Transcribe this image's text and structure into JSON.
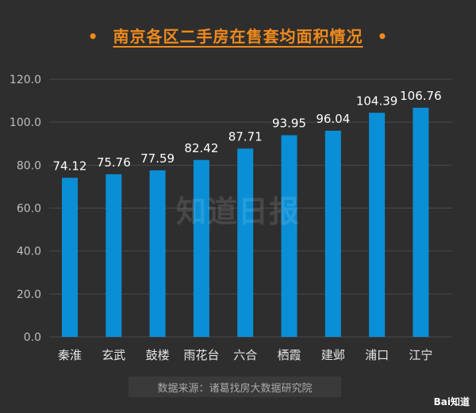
{
  "chart_data": {
    "type": "bar",
    "title": "南京各区二手房在售套均面积情况",
    "categories": [
      "秦淮",
      "玄武",
      "鼓楼",
      "雨花台",
      "六合",
      "栖霞",
      "建邺",
      "浦口",
      "江宁"
    ],
    "values": [
      74.12,
      75.76,
      77.59,
      82.42,
      87.71,
      93.95,
      96.04,
      104.39,
      106.76
    ],
    "value_labels": [
      "74.12",
      "75.76",
      "77.59",
      "82.42",
      "87.71",
      "93.95",
      "96.04",
      "104.39",
      "106.76"
    ],
    "yticks": [
      "0.0",
      "20.0",
      "40.0",
      "60.0",
      "80.0",
      "100.0",
      "120.0"
    ],
    "ylim": [
      0,
      120
    ],
    "grid": true,
    "bar_color": "#0a8fd6"
  },
  "source": "数据来源：诸葛找房大数据研究院",
  "watermark": "知道日报",
  "logo": "Bai知道",
  "title_bullet": "•"
}
